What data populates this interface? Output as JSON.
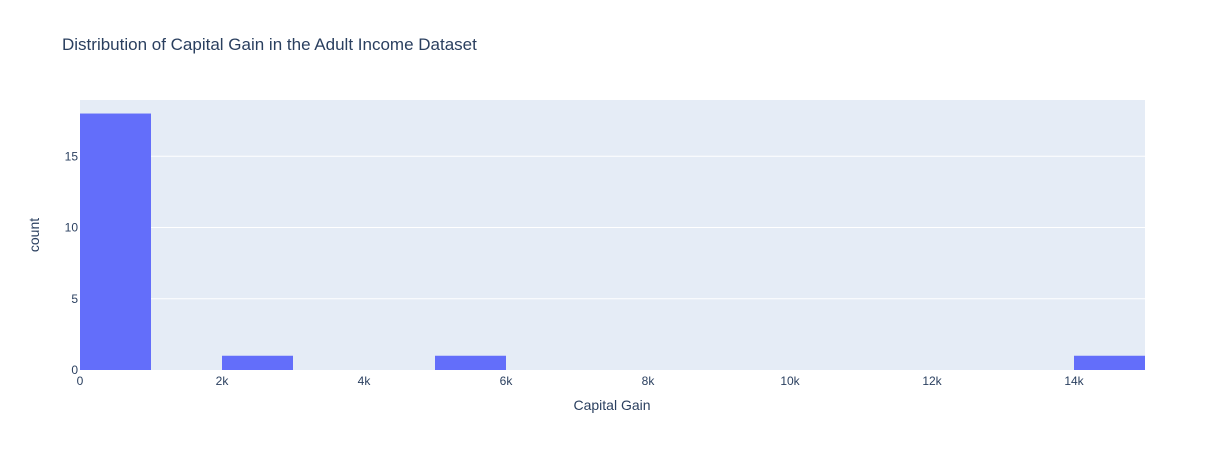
{
  "chart_data": {
    "type": "bar",
    "title": "Distribution of Capital Gain in the Adult Income Dataset",
    "xlabel": "Capital Gain",
    "ylabel": "count",
    "xlim": [
      0,
      15000
    ],
    "ylim": [
      0,
      18.95
    ],
    "bin_width": 1000,
    "bins": [
      {
        "start": 0,
        "end": 1000,
        "count": 18
      },
      {
        "start": 2000,
        "end": 3000,
        "count": 1
      },
      {
        "start": 5000,
        "end": 6000,
        "count": 1
      },
      {
        "start": 14000,
        "end": 15000,
        "count": 1
      }
    ],
    "x_ticks": [
      {
        "value": 0,
        "label": "0"
      },
      {
        "value": 2000,
        "label": "2k"
      },
      {
        "value": 4000,
        "label": "4k"
      },
      {
        "value": 6000,
        "label": "6k"
      },
      {
        "value": 8000,
        "label": "8k"
      },
      {
        "value": 10000,
        "label": "10k"
      },
      {
        "value": 12000,
        "label": "12k"
      },
      {
        "value": 14000,
        "label": "14k"
      }
    ],
    "y_ticks": [
      {
        "value": 0,
        "label": "0"
      },
      {
        "value": 5,
        "label": "5"
      },
      {
        "value": 10,
        "label": "10"
      },
      {
        "value": 15,
        "label": "15"
      }
    ],
    "grid": true,
    "colors": {
      "bar": "#636efa",
      "plot_bg": "#e5ecf6",
      "grid": "#ffffff",
      "text": "#2a3f5f"
    }
  }
}
